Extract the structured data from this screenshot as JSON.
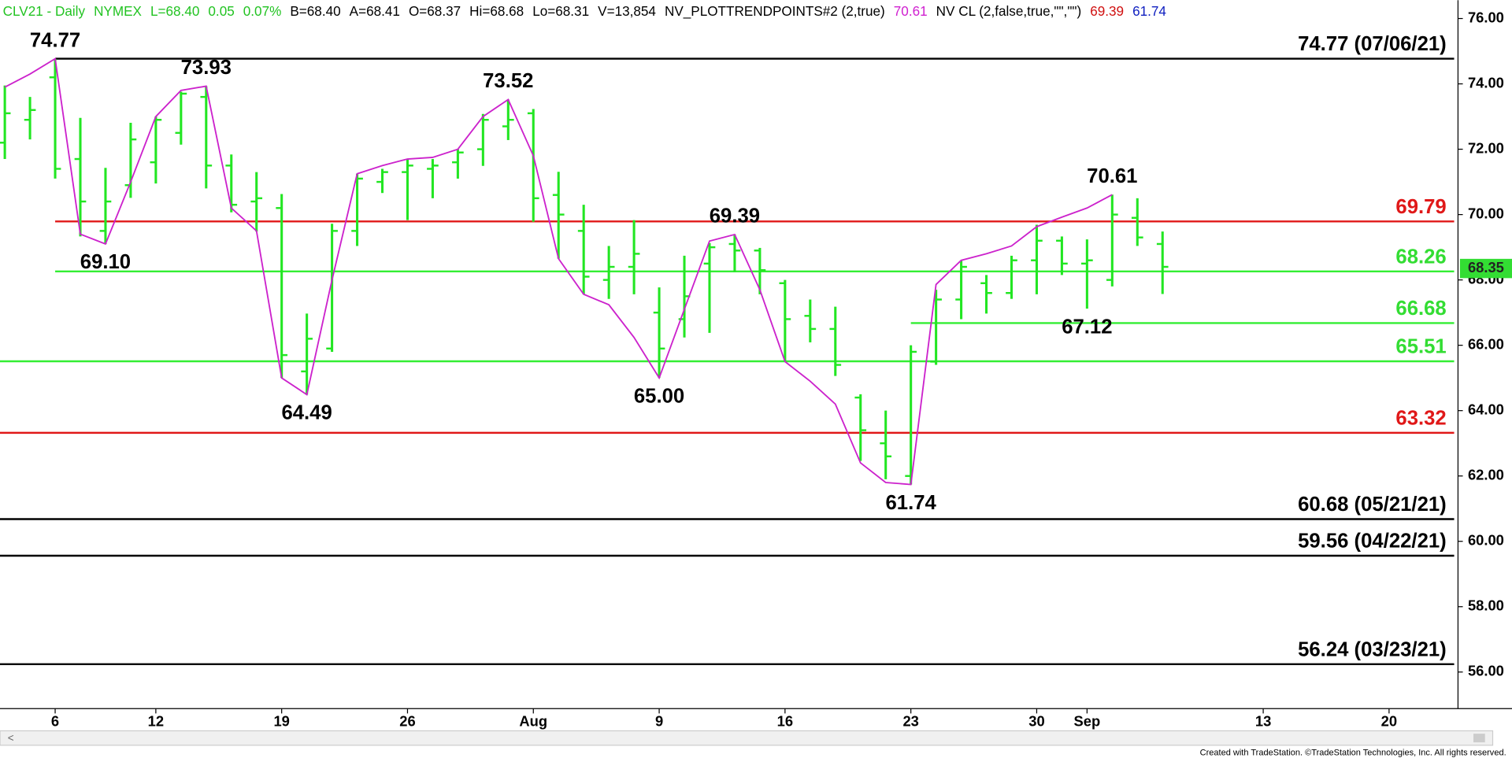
{
  "chart_data": {
    "type": "ohlc",
    "header": [
      {
        "text": "CLV21 - Daily",
        "color": "#22c322"
      },
      {
        "text": "NYMEX",
        "color": "#22c322"
      },
      {
        "text": "L=68.40",
        "color": "#22c322"
      },
      {
        "text": "0.05",
        "color": "#22c322"
      },
      {
        "text": "0.07%",
        "color": "#22c322"
      },
      {
        "text": "B=68.40",
        "color": "#000000"
      },
      {
        "text": "A=68.41",
        "color": "#000000"
      },
      {
        "text": "O=68.37",
        "color": "#000000"
      },
      {
        "text": "Hi=68.68",
        "color": "#000000"
      },
      {
        "text": "Lo=68.31",
        "color": "#000000"
      },
      {
        "text": "V=13,854",
        "color": "#000000"
      },
      {
        "text": "NV_PLOTTRENDPOINTS#2 (2,true)",
        "color": "#000000"
      },
      {
        "text": "70.61",
        "color": "#d020d0"
      },
      {
        "text": "NV CL (2,false,true,\"\",\"\")",
        "color": "#000000"
      },
      {
        "text": "69.39",
        "color": "#d01010"
      },
      {
        "text": "61.74",
        "color": "#1020c0"
      }
    ],
    "x": [
      "Jul 1",
      "Jul 2",
      "Jul 6",
      "Jul 7",
      "Jul 8",
      "Jul 9",
      "Jul 12",
      "Jul 13",
      "Jul 14",
      "Jul 15",
      "Jul 16",
      "Jul 19",
      "Jul 20",
      "Jul 21",
      "Jul 22",
      "Jul 23",
      "Jul 26",
      "Jul 27",
      "Jul 28",
      "Jul 29",
      "Jul 30",
      "Aug 2",
      "Aug 3",
      "Aug 4",
      "Aug 5",
      "Aug 6",
      "Aug 9",
      "Aug 10",
      "Aug 11",
      "Aug 12",
      "Aug 13",
      "Aug 16",
      "Aug 17",
      "Aug 18",
      "Aug 19",
      "Aug 20",
      "Aug 23",
      "Aug 24",
      "Aug 25",
      "Aug 26",
      "Aug 27",
      "Aug 30",
      "Aug 31",
      "Sep 1",
      "Sep 2",
      "Sep 3",
      "Sep 7"
    ],
    "open": [
      72.2,
      72.9,
      74.2,
      71.7,
      69.5,
      70.9,
      71.6,
      72.5,
      73.6,
      71.5,
      70.4,
      70.2,
      65.2,
      65.9,
      69.5,
      71.0,
      71.3,
      71.4,
      71.6,
      72.0,
      72.7,
      73.1,
      70.6,
      69.5,
      68.0,
      68.4,
      67.0,
      66.8,
      68.5,
      69.1,
      68.9,
      67.9,
      66.9,
      66.5,
      64.4,
      63.0,
      62.0,
      65.5,
      67.4,
      67.9,
      67.6,
      68.6,
      69.2,
      68.5,
      68.0,
      69.9,
      69.1
    ],
    "high": [
      73.95,
      73.6,
      74.77,
      72.96,
      71.43,
      72.81,
      73.0,
      73.76,
      73.93,
      71.84,
      71.3,
      70.63,
      66.97,
      69.72,
      71.25,
      71.4,
      71.7,
      71.7,
      72.0,
      73.08,
      73.52,
      73.23,
      71.31,
      70.3,
      69.04,
      69.83,
      67.77,
      68.74,
      69.13,
      69.39,
      68.98,
      68.0,
      67.4,
      67.18,
      64.5,
      64.0,
      66.0,
      67.7,
      68.6,
      68.15,
      68.74,
      69.69,
      69.33,
      69.24,
      70.61,
      70.5,
      69.48
    ],
    "low": [
      71.7,
      72.3,
      71.1,
      69.33,
      69.1,
      70.51,
      70.95,
      72.14,
      70.8,
      70.07,
      69.48,
      65.0,
      64.49,
      65.8,
      69.04,
      70.66,
      69.83,
      70.5,
      71.1,
      71.49,
      72.28,
      69.78,
      68.65,
      67.56,
      67.42,
      67.56,
      65.0,
      66.24,
      66.38,
      68.24,
      67.56,
      65.5,
      66.09,
      65.06,
      62.46,
      61.9,
      61.74,
      65.4,
      66.8,
      66.97,
      67.42,
      67.56,
      68.15,
      67.12,
      67.8,
      69.04,
      67.57
    ],
    "close": [
      73.1,
      73.2,
      71.4,
      70.4,
      70.4,
      72.3,
      72.9,
      73.7,
      71.5,
      70.3,
      70.5,
      65.7,
      66.2,
      69.5,
      71.1,
      71.3,
      71.5,
      71.5,
      71.9,
      72.9,
      72.9,
      70.5,
      70.0,
      68.1,
      68.4,
      68.8,
      65.9,
      67.5,
      69.0,
      68.9,
      68.3,
      66.8,
      66.5,
      65.4,
      63.4,
      62.6,
      65.8,
      67.4,
      68.4,
      67.6,
      68.6,
      69.2,
      68.5,
      68.6,
      70.0,
      69.3,
      68.4
    ],
    "color": "#22e622",
    "trendline": {
      "color": "#cc22cc",
      "values": [
        73.9,
        74.3,
        74.77,
        69.4,
        69.1,
        71.0,
        73.0,
        73.8,
        73.93,
        70.2,
        69.5,
        65.0,
        64.49,
        68.0,
        71.25,
        71.5,
        71.7,
        71.75,
        72.0,
        73.0,
        73.52,
        71.8,
        68.65,
        67.56,
        67.24,
        66.24,
        65.0,
        67.1,
        69.19,
        69.39,
        67.7,
        65.5,
        64.9,
        64.2,
        62.4,
        61.8,
        61.74,
        67.86,
        68.6,
        68.8,
        69.04,
        69.63,
        69.92,
        70.2,
        70.61,
        null,
        null
      ]
    },
    "pivots": [
      {
        "x": "Jul 6",
        "value": 74.77,
        "label": "74.77",
        "position": "above"
      },
      {
        "x": "Jul 8",
        "value": 69.1,
        "label": "69.10",
        "position": "below"
      },
      {
        "x": "Jul 14",
        "value": 73.93,
        "label": "73.93",
        "position": "above"
      },
      {
        "x": "Jul 20",
        "value": 64.49,
        "label": "64.49",
        "position": "below"
      },
      {
        "x": "Jul 30",
        "value": 73.52,
        "label": "73.52",
        "position": "above"
      },
      {
        "x": "Aug 9",
        "value": 65.0,
        "label": "65.00",
        "position": "below"
      },
      {
        "x": "Aug 12",
        "value": 69.39,
        "label": "69.39",
        "position": "above"
      },
      {
        "x": "Aug 23",
        "value": 61.74,
        "label": "61.74",
        "position": "below"
      },
      {
        "x": "Sep 2",
        "value": 70.61,
        "label": "70.61",
        "position": "above"
      },
      {
        "x": "Sep 1",
        "value": 67.12,
        "label": "67.12",
        "position": "below"
      }
    ],
    "levels": [
      {
        "value": 74.77,
        "label": "74.77 (07/06/21)",
        "color": "#000000",
        "label_color": "#000000",
        "start": "Jul 6"
      },
      {
        "value": 69.79,
        "label": "69.79",
        "color": "#e01818",
        "label_color": "#e01818",
        "start": "Jul 6"
      },
      {
        "value": 68.26,
        "label": "68.26",
        "color": "#33ee33",
        "label_color": "#33dd33",
        "start": "Jul 6"
      },
      {
        "value": 66.68,
        "label": "66.68",
        "color": "#33ee33",
        "label_color": "#33dd33",
        "start": "Aug 23"
      },
      {
        "value": 65.51,
        "label": "65.51",
        "color": "#33ee33",
        "label_color": "#33dd33"
      },
      {
        "value": 63.32,
        "label": "63.32",
        "color": "#e01818",
        "label_color": "#e01818"
      },
      {
        "value": 60.68,
        "label": "60.68 (05/21/21)",
        "color": "#000000",
        "label_color": "#000000"
      },
      {
        "value": 59.56,
        "label": "59.56 (04/22/21)",
        "color": "#000000",
        "label_color": "#000000"
      },
      {
        "value": 56.24,
        "label": "56.24 (03/23/21)",
        "color": "#000000",
        "label_color": "#000000"
      }
    ],
    "last_price": 68.35,
    "ylim": [
      54.88,
      76.56
    ],
    "yticks": [
      {
        "value": 56,
        "label": "56.00"
      },
      {
        "value": 58,
        "label": "58.00"
      },
      {
        "value": 60,
        "label": "60.00"
      },
      {
        "value": 62,
        "label": "62.00"
      },
      {
        "value": 64,
        "label": "64.00"
      },
      {
        "value": 66,
        "label": "66.00"
      },
      {
        "value": 68,
        "label": "68.00"
      },
      {
        "value": 70,
        "label": "70.00"
      },
      {
        "value": 72,
        "label": "72.00"
      },
      {
        "value": 74,
        "label": "74.00"
      },
      {
        "value": 76,
        "label": "76.00"
      }
    ],
    "xticks": [
      {
        "value": "Jul 6",
        "label": "6"
      },
      {
        "value": "Jul 12",
        "label": "12"
      },
      {
        "value": "Jul 19",
        "label": "19"
      },
      {
        "value": "Jul 26",
        "label": "26"
      },
      {
        "value": "Aug 2",
        "label": "Aug"
      },
      {
        "value": "Aug 9",
        "label": "9"
      },
      {
        "value": "Aug 16",
        "label": "16"
      },
      {
        "value": "Aug 23",
        "label": "23"
      },
      {
        "value": "Aug 30",
        "label": "30"
      },
      {
        "value": "Sep 1",
        "label": "Sep"
      },
      {
        "value": "Sep 13",
        "label": "13"
      },
      {
        "value": "Sep 20",
        "label": "20"
      }
    ],
    "footer": "Created with TradeStation. ©TradeStation Technologies, Inc. All rights reserved."
  }
}
